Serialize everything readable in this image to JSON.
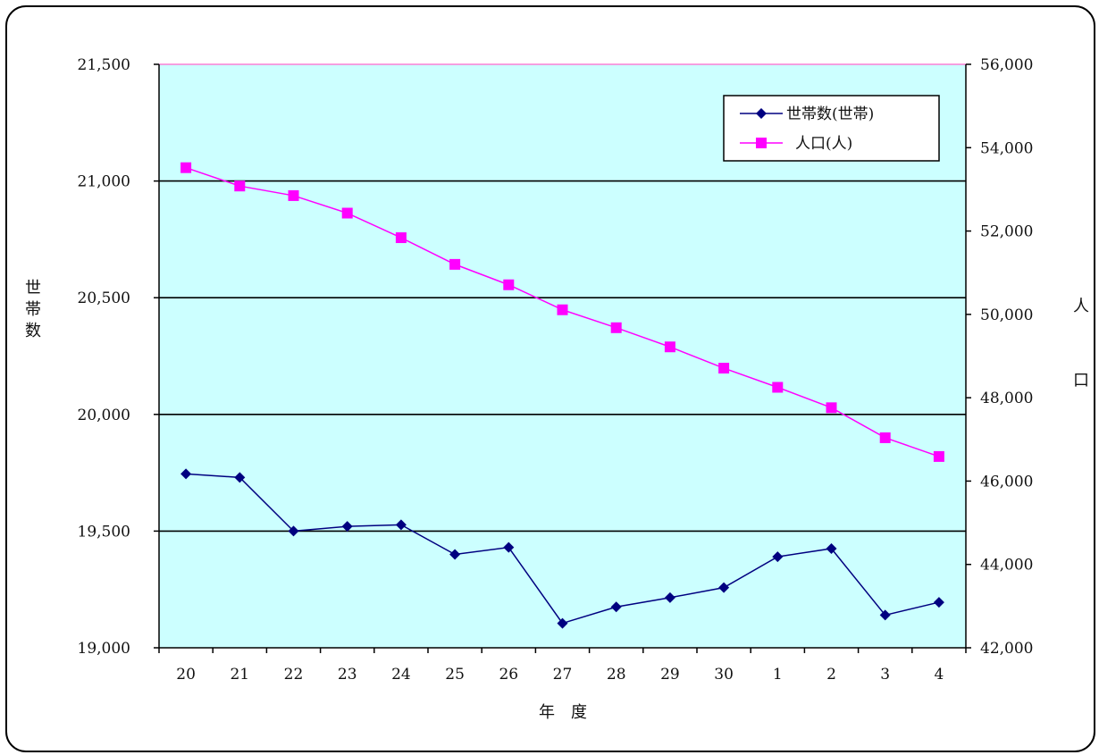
{
  "chart_data": {
    "type": "line",
    "categories": [
      "20",
      "21",
      "22",
      "23",
      "24",
      "25",
      "26",
      "27",
      "28",
      "29",
      "30",
      "1",
      "2",
      "3",
      "4"
    ],
    "xlabel": "年　度",
    "ylabel_left": "世帯数",
    "ylabel_right": "人口",
    "ylim_left": [
      19000,
      21500
    ],
    "ylim_right": [
      42000,
      56000
    ],
    "yticks_left": [
      "19,000",
      "19,500",
      "20,000",
      "20,500",
      "21,000",
      "21,500"
    ],
    "yticks_right": [
      "42,000",
      "44,000",
      "46,000",
      "48,000",
      "50,000",
      "52,000",
      "54,000",
      "56,000"
    ],
    "grid": true,
    "legend_position": "top-right",
    "plot_background": "#ccffff",
    "series": [
      {
        "name": "世帯数(世帯)",
        "axis": "left",
        "color": "#000080",
        "marker": "diamond",
        "values": [
          19745,
          19730,
          19500,
          19520,
          19527,
          19400,
          19430,
          19105,
          19175,
          19215,
          19258,
          19390,
          19425,
          19140,
          19195
        ]
      },
      {
        "name": "人口(人)",
        "axis": "right",
        "color": "#ff00ff",
        "marker": "square",
        "values": [
          53520,
          53080,
          52850,
          52430,
          51840,
          51200,
          50710,
          50110,
          49680,
          49220,
          48710,
          48250,
          47760,
          47040,
          46590
        ]
      }
    ]
  }
}
